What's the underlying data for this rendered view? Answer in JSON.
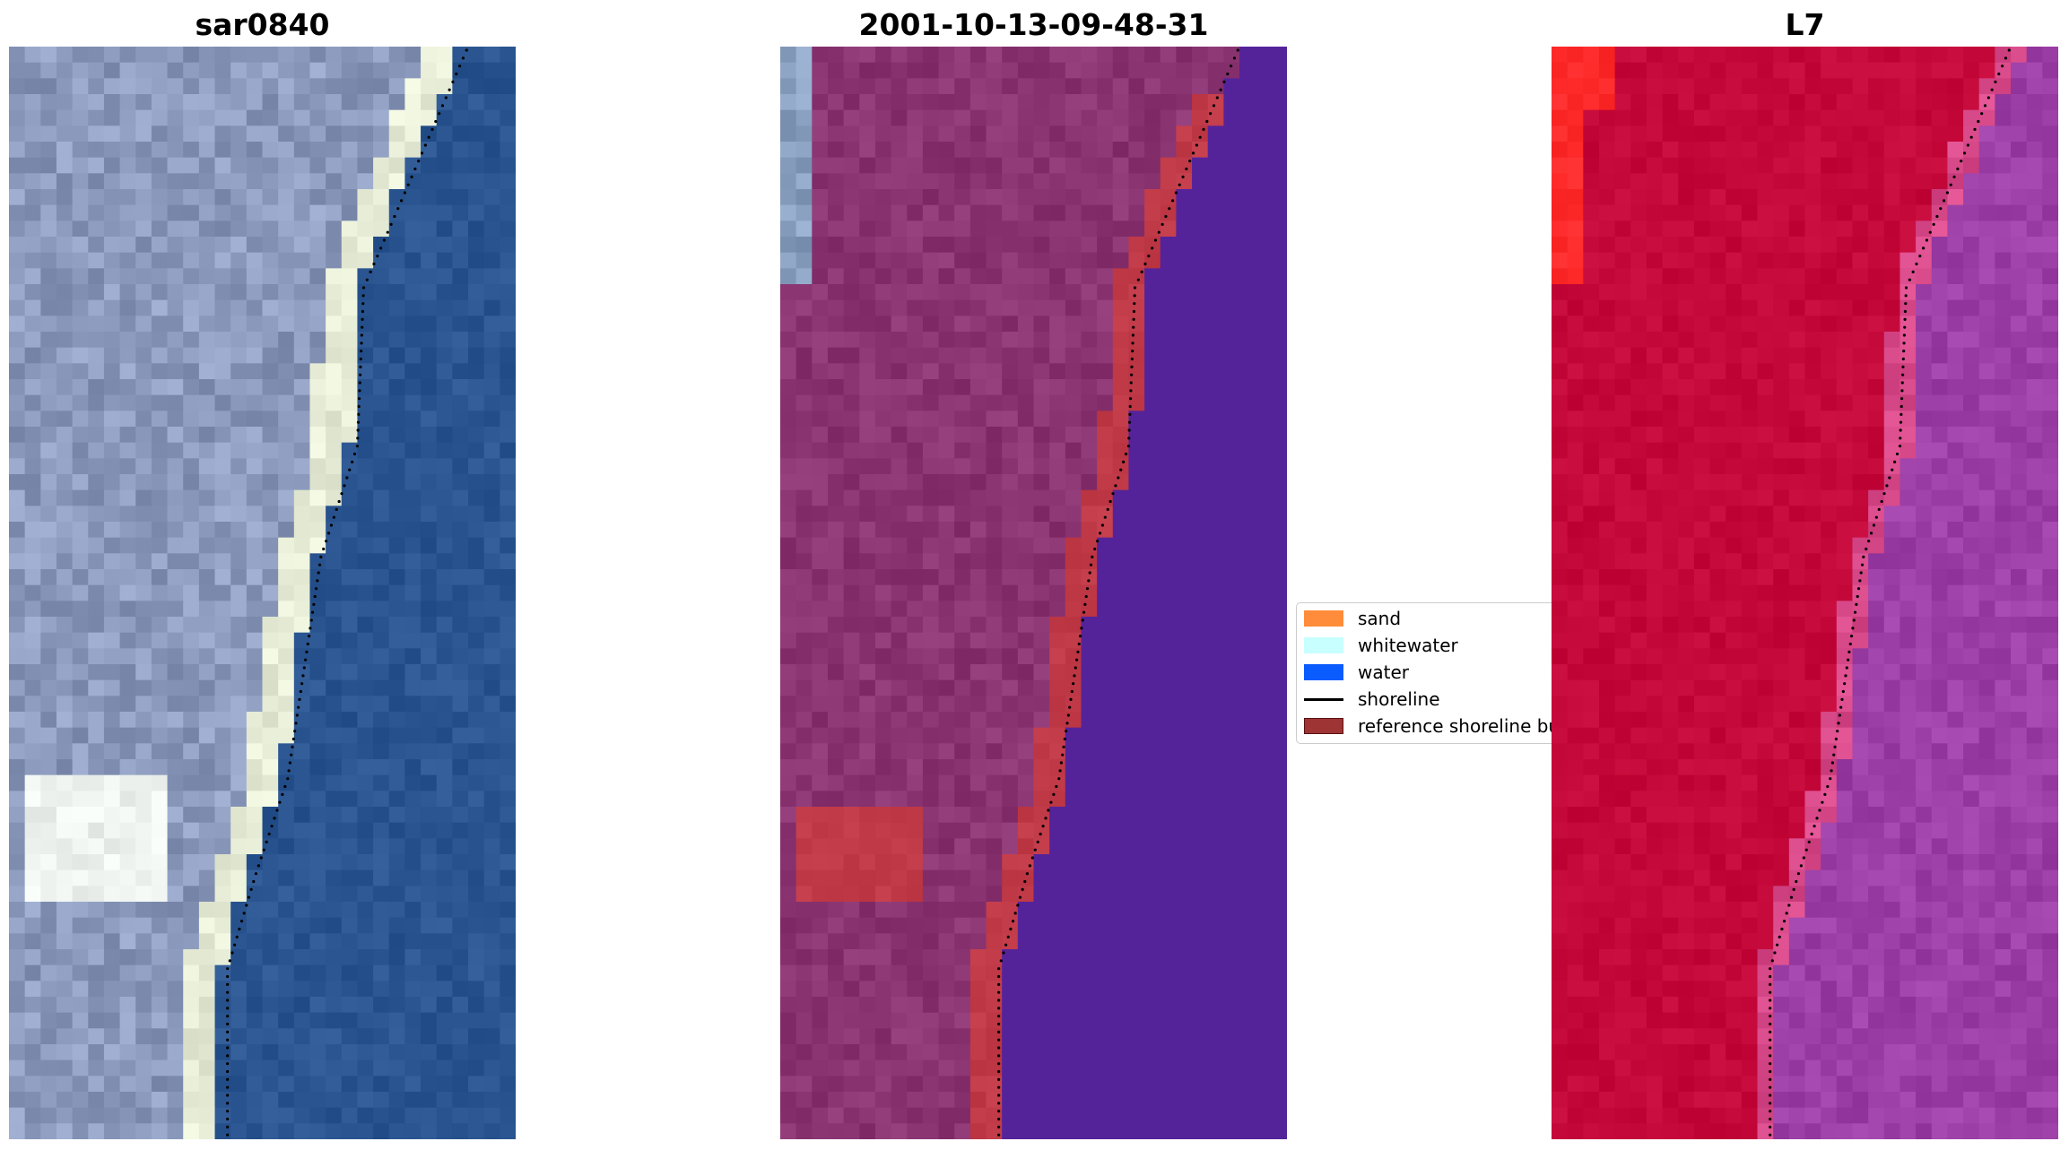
{
  "panels": [
    {
      "title": "sar0840",
      "view": "rgb"
    },
    {
      "title": "2001-10-13-09-48-31",
      "view": "classification"
    },
    {
      "title": "L7",
      "view": "false-color"
    }
  ],
  "legend": {
    "items": [
      {
        "label": "sand",
        "color": "#ff8c3a",
        "kind": "patch"
      },
      {
        "label": "whitewater",
        "color": "#c8ffff",
        "kind": "patch"
      },
      {
        "label": "water",
        "color": "#0a5cff",
        "kind": "patch"
      },
      {
        "label": "shoreline",
        "color": "#000000",
        "kind": "line"
      },
      {
        "label": "reference shoreline buffer",
        "color": "#9e3434",
        "kind": "patch",
        "border": "#5a1010"
      }
    ]
  },
  "colors": {
    "rgb_water": "#2a5590",
    "rgb_land": "#8c9bbd",
    "rgb_beach": "#e6ecd6",
    "class_land": "#8a3572",
    "class_water": "#54239a",
    "class_buffer": "#c03a48",
    "fc_land": "#c4093a",
    "fc_water": "#9c3fa6",
    "fc_bright": "#ff2a2a"
  }
}
